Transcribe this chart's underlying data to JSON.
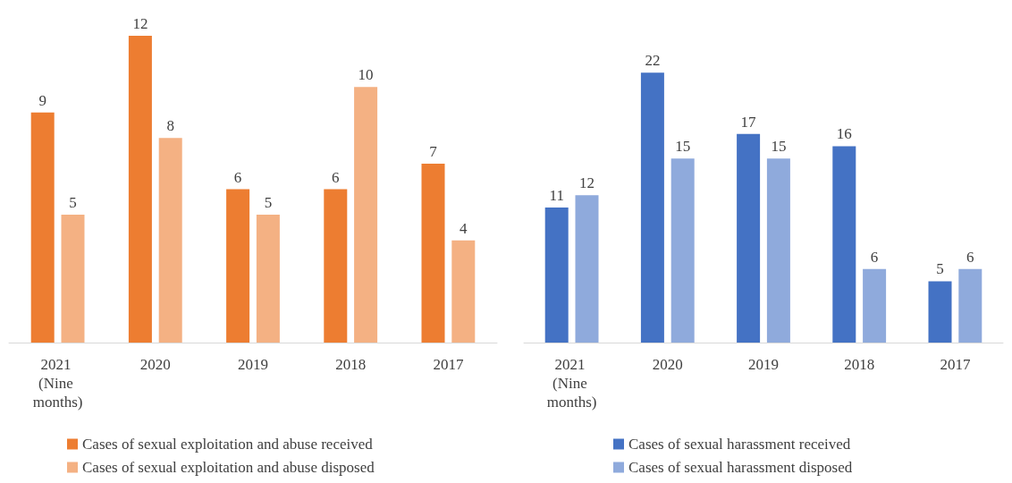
{
  "chart_data": [
    {
      "type": "bar",
      "categories": [
        "2021 (Nine months)",
        "2020",
        "2019",
        "2018",
        "2017"
      ],
      "series": [
        {
          "name": "Cases of sexual exploitation and abuse received",
          "color": "#ed7d31",
          "values": [
            9,
            12,
            6,
            6,
            7
          ]
        },
        {
          "name": "Cases of sexual exploitation and abuse disposed",
          "color": "#f4b183",
          "values": [
            5,
            8,
            5,
            10,
            4
          ]
        }
      ],
      "data_labels": true,
      "legend": "bottom left"
    },
    {
      "type": "bar",
      "categories": [
        "2021 (Nine months)",
        "2020",
        "2019",
        "2018",
        "2017"
      ],
      "series": [
        {
          "name": "Cases of sexual harassment received",
          "color": "#4472c4",
          "values": [
            11,
            22,
            17,
            16,
            5
          ]
        },
        {
          "name": "Cases of sexual harassment disposed",
          "color": "#8faadc",
          "values": [
            12,
            15,
            15,
            6,
            6
          ]
        }
      ],
      "data_labels": true,
      "legend": "bottom left"
    }
  ]
}
